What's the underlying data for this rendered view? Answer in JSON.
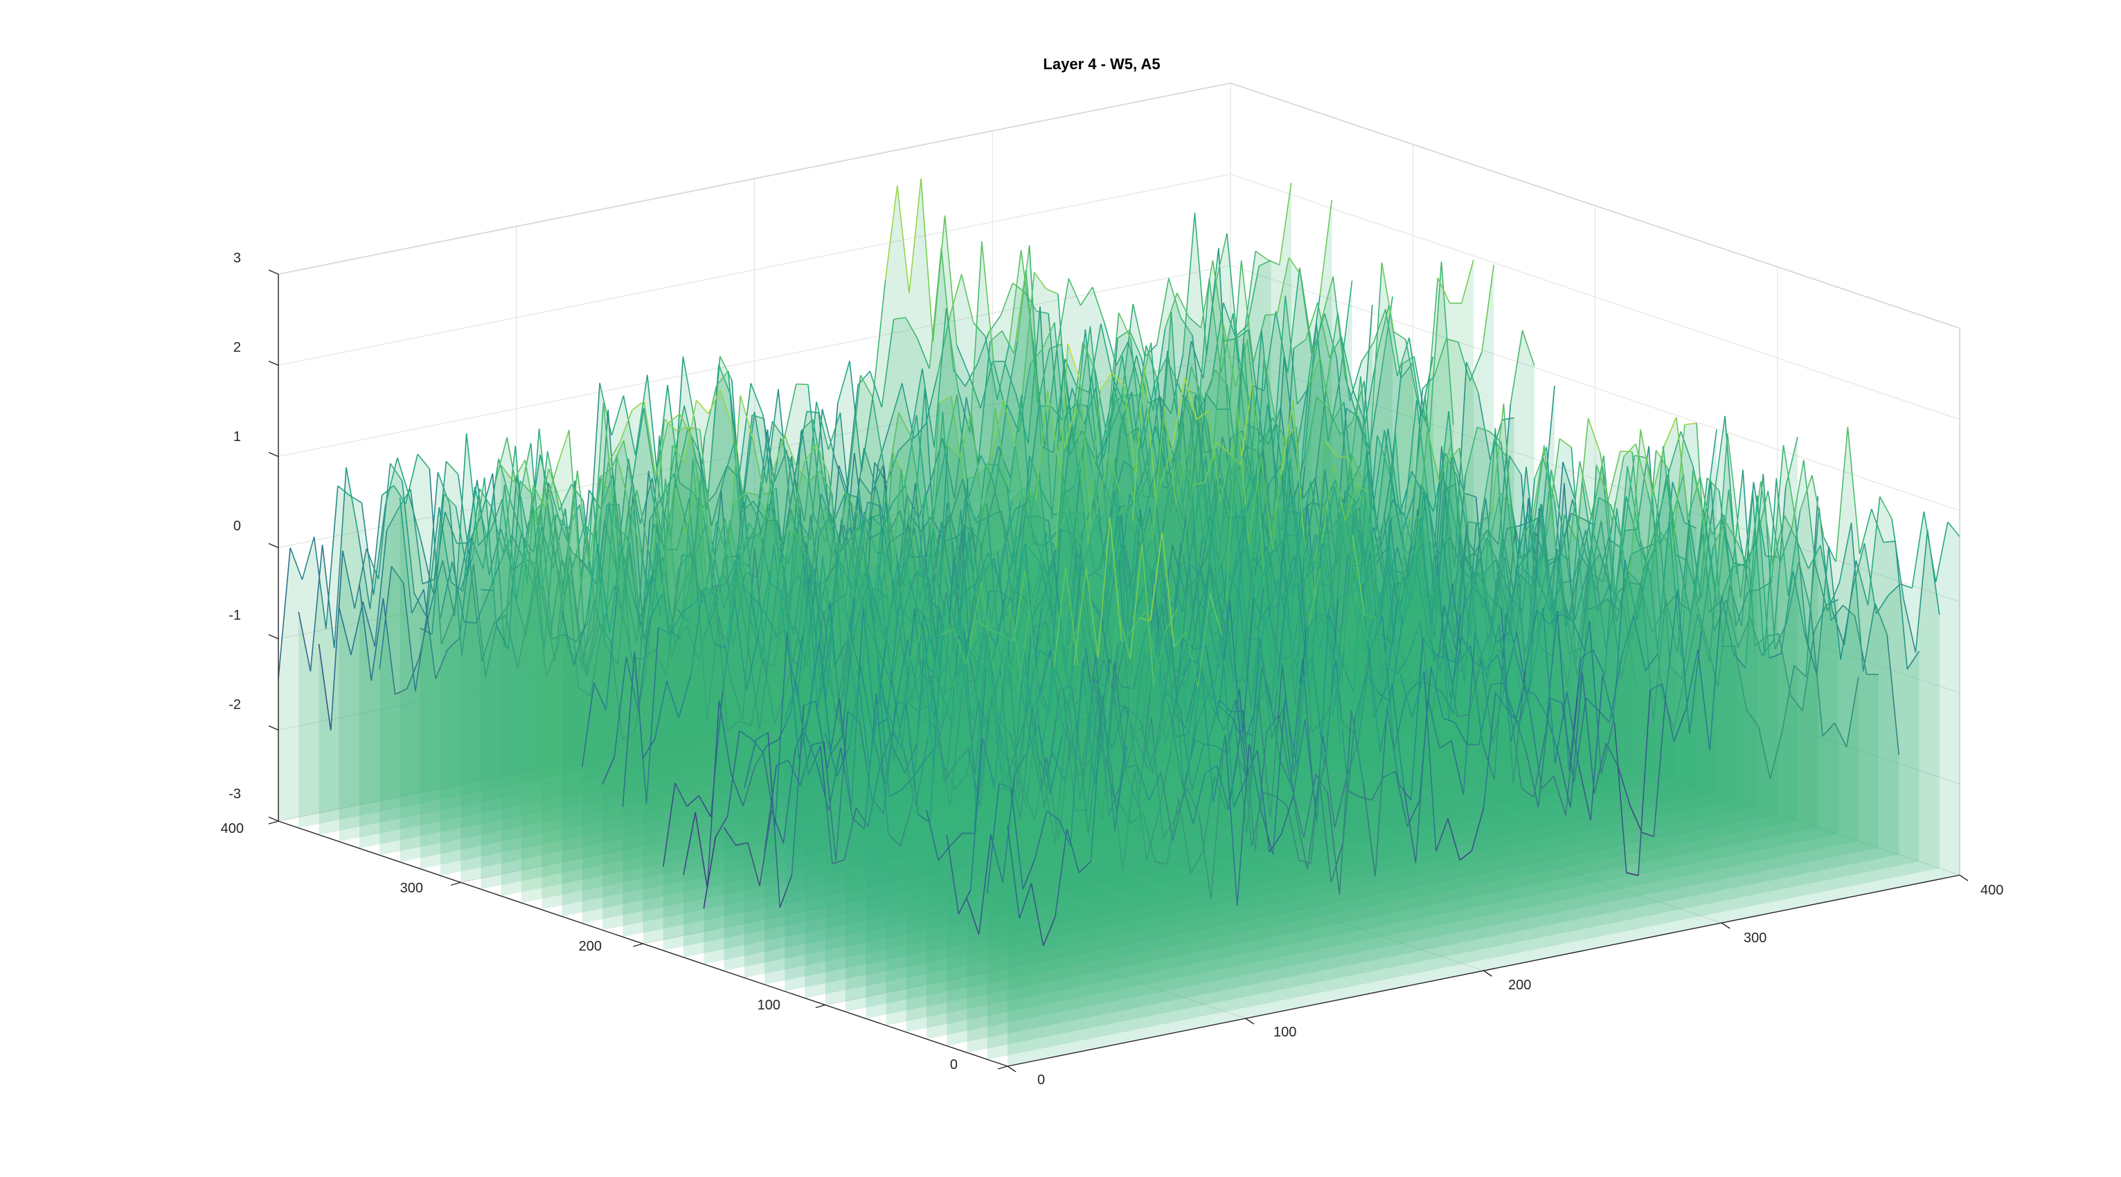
{
  "chart_data": {
    "type": "surface",
    "title": "Layer 4 - W5, A5",
    "xlabel": "",
    "ylabel": "",
    "zlabel": "",
    "xlim": [
      0,
      400
    ],
    "ylim": [
      0,
      400
    ],
    "zlim": [
      -3,
      3
    ],
    "x_ticks": [
      "0",
      "100",
      "200",
      "300",
      "400"
    ],
    "y_ticks": [
      "0",
      "100",
      "200",
      "300",
      "400"
    ],
    "z_ticks": [
      "-3",
      "-2",
      "-1",
      "0",
      "1",
      "2",
      "3"
    ],
    "colormap": "viridis",
    "grid": true,
    "data_summary": {
      "z_approx_range": [
        -3,
        3
      ],
      "z_approx_mean": 0
    }
  }
}
